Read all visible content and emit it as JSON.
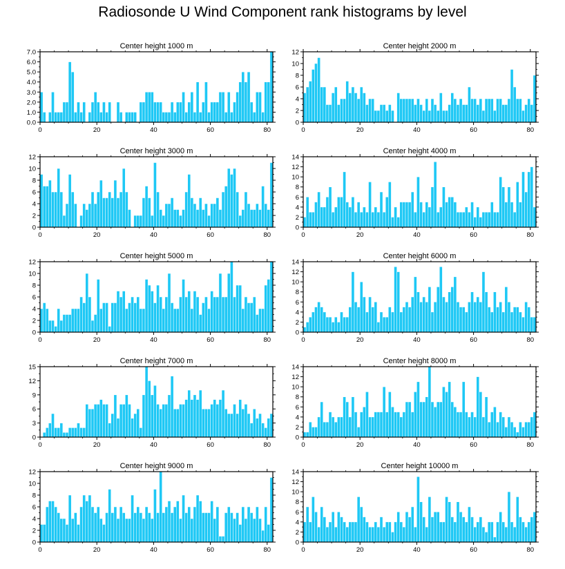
{
  "figure": {
    "title": "Radiosonde U Wind Component rank histograms by level"
  },
  "colors": {
    "bar_fill": "#1ec8f5",
    "bar_edge": "#ffffff",
    "axis": "#000000"
  },
  "chart_data": [
    {
      "type": "bar",
      "title": "Center height 1000 m",
      "xlabel": "",
      "ylabel": "",
      "xlim": [
        0,
        82
      ],
      "xticks": [
        0,
        20,
        40,
        60,
        80
      ],
      "ylim": [
        0,
        7
      ],
      "yticks": [
        0,
        1,
        2,
        3,
        4,
        5,
        6,
        7
      ],
      "ytick_labels": [
        "0.0",
        "1.0",
        "2.0",
        "3.0",
        "4.0",
        "5.0",
        "6.0",
        "7.0"
      ],
      "values": [
        3,
        1,
        0,
        1,
        3,
        1,
        1,
        1,
        2,
        2,
        6,
        5,
        1,
        2,
        1,
        2,
        0,
        1,
        2,
        3,
        2,
        1,
        2,
        1,
        2,
        0,
        0,
        2,
        1,
        0,
        1,
        1,
        1,
        1,
        0,
        2,
        2,
        3,
        3,
        3,
        2,
        2,
        2,
        1,
        1,
        1,
        2,
        1,
        2,
        2,
        3,
        1,
        2,
        3,
        1,
        4,
        1,
        2,
        4,
        1,
        2,
        2,
        2,
        3,
        3,
        1,
        3,
        1,
        2,
        3,
        4,
        5,
        4,
        5,
        2,
        1,
        3,
        3,
        1,
        4,
        4,
        7
      ]
    },
    {
      "type": "bar",
      "title": "Center height 2000 m",
      "xlabel": "",
      "ylabel": "",
      "xlim": [
        0,
        82
      ],
      "xticks": [
        0,
        20,
        40,
        60,
        80
      ],
      "ylim": [
        0,
        12
      ],
      "yticks": [
        0,
        2,
        4,
        6,
        8,
        10,
        12
      ],
      "ytick_labels": [
        "0",
        "2",
        "4",
        "6",
        "8",
        "10",
        "12"
      ],
      "values": [
        5,
        6,
        7,
        9,
        10,
        11,
        6,
        6,
        3,
        3,
        5,
        6,
        3,
        4,
        4,
        7,
        5,
        6,
        5,
        4,
        6,
        5,
        3,
        4,
        4,
        2,
        2,
        3,
        3,
        2,
        3,
        2,
        0,
        5,
        4,
        4,
        4,
        4,
        4,
        3,
        4,
        3,
        2,
        4,
        2,
        4,
        3,
        2,
        5,
        2,
        2,
        3,
        5,
        4,
        3,
        4,
        3,
        3,
        6,
        4,
        4,
        3,
        4,
        2,
        4,
        4,
        4,
        2,
        4,
        4,
        3,
        3,
        4,
        9,
        6,
        4,
        4,
        2,
        3,
        4,
        3,
        8
      ]
    },
    {
      "type": "bar",
      "title": "Center height 3000 m",
      "xlabel": "",
      "ylabel": "",
      "xlim": [
        0,
        82
      ],
      "xticks": [
        0,
        20,
        40,
        60,
        80
      ],
      "ylim": [
        0,
        12
      ],
      "yticks": [
        0,
        2,
        4,
        6,
        8,
        10,
        12
      ],
      "ytick_labels": [
        "0",
        "2",
        "4",
        "6",
        "8",
        "10",
        "12"
      ],
      "values": [
        9,
        7,
        7,
        8,
        6,
        6,
        10,
        6,
        2,
        4,
        9,
        6,
        4,
        0,
        2,
        4,
        3,
        4,
        6,
        4,
        6,
        8,
        5,
        5,
        6,
        5,
        8,
        5,
        6,
        10,
        6,
        3,
        0,
        2,
        2,
        2,
        5,
        7,
        5,
        2,
        11,
        6,
        3,
        2,
        4,
        4,
        5,
        3,
        3,
        2,
        3,
        6,
        9,
        5,
        4,
        3,
        5,
        3,
        4,
        2,
        4,
        4,
        5,
        3,
        6,
        7,
        10,
        9,
        10,
        6,
        2,
        3,
        6,
        4,
        3,
        3,
        4,
        3,
        7,
        4,
        3,
        11
      ]
    },
    {
      "type": "bar",
      "title": "Center height 4000 m",
      "xlabel": "",
      "ylabel": "",
      "xlim": [
        0,
        82
      ],
      "xticks": [
        0,
        20,
        40,
        60,
        80
      ],
      "ylim": [
        0,
        14
      ],
      "yticks": [
        0,
        2,
        4,
        6,
        8,
        10,
        12,
        14
      ],
      "ytick_labels": [
        "0",
        "2",
        "4",
        "6",
        "8",
        "10",
        "12",
        "14"
      ],
      "values": [
        2,
        6,
        3,
        3,
        5,
        7,
        4,
        4,
        6,
        8,
        3,
        4,
        6,
        6,
        11,
        5,
        4,
        6,
        3,
        5,
        3,
        4,
        3,
        9,
        3,
        4,
        3,
        7,
        3,
        6,
        9,
        2,
        4,
        2,
        5,
        5,
        5,
        5,
        7,
        3,
        10,
        5,
        3,
        5,
        4,
        8,
        13,
        3,
        4,
        8,
        5,
        6,
        6,
        5,
        3,
        3,
        3,
        4,
        3,
        5,
        2,
        4,
        2,
        3,
        3,
        3,
        5,
        3,
        3,
        10,
        8,
        5,
        8,
        5,
        3,
        9,
        5,
        11,
        7,
        11,
        12,
        4
      ]
    },
    {
      "type": "bar",
      "title": "Center height 5000 m",
      "xlabel": "",
      "ylabel": "",
      "xlim": [
        0,
        82
      ],
      "xticks": [
        0,
        20,
        40,
        60,
        80
      ],
      "ylim": [
        0,
        12
      ],
      "yticks": [
        0,
        2,
        4,
        6,
        8,
        10,
        12
      ],
      "ytick_labels": [
        "0",
        "2",
        "4",
        "6",
        "8",
        "10",
        "12"
      ],
      "values": [
        4,
        5,
        4,
        2,
        2,
        1,
        4,
        2,
        3,
        3,
        3,
        4,
        4,
        4,
        6,
        5,
        10,
        6,
        2,
        3,
        9,
        4,
        5,
        5,
        1,
        5,
        5,
        7,
        6,
        7,
        4,
        5,
        6,
        5,
        6,
        4,
        4,
        9,
        8,
        7,
        5,
        8,
        6,
        4,
        6,
        10,
        5,
        4,
        4,
        6,
        9,
        6,
        7,
        4,
        7,
        6,
        3,
        5,
        6,
        4,
        7,
        6,
        6,
        10,
        6,
        6,
        10,
        12,
        6,
        8,
        8,
        4,
        6,
        5,
        5,
        6,
        3,
        4,
        4,
        8,
        9,
        12
      ]
    },
    {
      "type": "bar",
      "title": "Center height 6000 m",
      "xlabel": "",
      "ylabel": "",
      "xlim": [
        0,
        82
      ],
      "xticks": [
        0,
        20,
        40,
        60,
        80
      ],
      "ylim": [
        0,
        14
      ],
      "yticks": [
        0,
        2,
        4,
        6,
        8,
        10,
        12,
        14
      ],
      "ytick_labels": [
        "0",
        "2",
        "4",
        "6",
        "8",
        "10",
        "12",
        "14"
      ],
      "values": [
        1,
        2,
        3,
        4,
        5,
        6,
        5,
        4,
        3,
        3,
        2,
        3,
        2,
        4,
        3,
        3,
        5,
        12,
        6,
        5,
        10,
        7,
        4,
        7,
        5,
        6,
        2,
        4,
        3,
        3,
        5,
        4,
        13,
        12,
        4,
        5,
        6,
        5,
        7,
        11,
        8,
        6,
        7,
        6,
        9,
        4,
        6,
        9,
        13,
        7,
        6,
        8,
        9,
        11,
        6,
        5,
        5,
        4,
        6,
        8,
        6,
        7,
        6,
        12,
        8,
        5,
        4,
        8,
        5,
        6,
        4,
        9,
        6,
        4,
        5,
        5,
        4,
        3,
        6,
        5,
        3,
        3
      ]
    },
    {
      "type": "bar",
      "title": "Center height 7000 m",
      "xlabel": "",
      "ylabel": "",
      "xlim": [
        0,
        82
      ],
      "xticks": [
        0,
        20,
        40,
        60,
        80
      ],
      "ylim": [
        0,
        15
      ],
      "yticks": [
        0,
        3,
        6,
        9,
        12,
        15
      ],
      "ytick_labels": [
        "0",
        "3",
        "6",
        "9",
        "12",
        "15"
      ],
      "values": [
        0,
        1,
        2,
        3,
        5,
        2,
        2,
        3,
        1,
        1,
        2,
        2,
        2,
        3,
        2,
        2,
        7,
        6,
        6,
        7,
        7,
        8,
        7,
        7,
        3,
        5,
        9,
        4,
        7,
        7,
        9,
        7,
        4,
        5,
        6,
        2,
        9,
        15,
        12,
        9,
        11,
        7,
        6,
        7,
        7,
        9,
        13,
        6,
        6,
        7,
        7,
        8,
        10,
        8,
        9,
        8,
        10,
        6,
        6,
        6,
        7,
        8,
        7,
        8,
        10,
        6,
        5,
        5,
        7,
        5,
        8,
        6,
        7,
        5,
        3,
        6,
        4,
        5,
        3,
        2,
        4,
        5
      ]
    },
    {
      "type": "bar",
      "title": "Center height 8000 m",
      "xlabel": "",
      "ylabel": "",
      "xlim": [
        0,
        82
      ],
      "xticks": [
        0,
        20,
        40,
        60,
        80
      ],
      "ylim": [
        0,
        14
      ],
      "yticks": [
        0,
        2,
        4,
        6,
        8,
        10,
        12,
        14
      ],
      "ytick_labels": [
        "0",
        "2",
        "4",
        "6",
        "8",
        "10",
        "12",
        "14"
      ],
      "values": [
        1,
        1,
        3,
        2,
        2,
        4,
        7,
        3,
        3,
        5,
        4,
        3,
        4,
        4,
        8,
        7,
        4,
        8,
        5,
        2,
        5,
        6,
        9,
        4,
        4,
        5,
        5,
        5,
        10,
        5,
        9,
        6,
        5,
        5,
        4,
        5,
        7,
        7,
        5,
        9,
        11,
        7,
        7,
        8,
        14,
        7,
        6,
        7,
        7,
        10,
        9,
        11,
        7,
        6,
        5,
        5,
        11,
        5,
        4,
        5,
        4,
        12,
        9,
        4,
        8,
        3,
        5,
        6,
        3,
        5,
        4,
        2,
        4,
        3,
        2,
        1,
        3,
        2,
        3,
        3,
        4,
        5
      ]
    },
    {
      "type": "bar",
      "title": "Center height 9000 m",
      "xlabel": "",
      "ylabel": "",
      "xlim": [
        0,
        82
      ],
      "xticks": [
        0,
        20,
        40,
        60,
        80
      ],
      "ylim": [
        0,
        12
      ],
      "yticks": [
        0,
        2,
        4,
        6,
        8,
        10,
        12
      ],
      "ytick_labels": [
        "0",
        "2",
        "4",
        "6",
        "8",
        "10",
        "12"
      ],
      "values": [
        3,
        3,
        6,
        7,
        7,
        6,
        5,
        4,
        4,
        3,
        8,
        4,
        5,
        3,
        6,
        8,
        7,
        8,
        6,
        5,
        6,
        4,
        3,
        5,
        9,
        5,
        6,
        4,
        6,
        5,
        4,
        4,
        8,
        5,
        6,
        5,
        4,
        6,
        5,
        4,
        9,
        5,
        12,
        5,
        6,
        7,
        5,
        6,
        7,
        4,
        8,
        5,
        6,
        4,
        6,
        8,
        7,
        5,
        5,
        5,
        7,
        4,
        6,
        1,
        1,
        5,
        6,
        5,
        4,
        5,
        3,
        6,
        4,
        6,
        5,
        4,
        6,
        4,
        2,
        6,
        3,
        11
      ]
    },
    {
      "type": "bar",
      "title": "Center height 10000 m",
      "xlabel": "",
      "ylabel": "",
      "xlim": [
        0,
        82
      ],
      "xticks": [
        0,
        20,
        40,
        60,
        80
      ],
      "ylim": [
        0,
        14
      ],
      "yticks": [
        0,
        2,
        4,
        6,
        8,
        10,
        12,
        14
      ],
      "ytick_labels": [
        "0",
        "2",
        "4",
        "6",
        "8",
        "10",
        "12",
        "14"
      ],
      "values": [
        4,
        7,
        4,
        9,
        6,
        3,
        7,
        5,
        3,
        4,
        6,
        3,
        6,
        5,
        4,
        3,
        4,
        4,
        4,
        9,
        7,
        5,
        4,
        3,
        3,
        4,
        3,
        5,
        3,
        4,
        4,
        2,
        4,
        6,
        4,
        3,
        6,
        5,
        7,
        3,
        13,
        8,
        5,
        3,
        9,
        5,
        6,
        6,
        4,
        4,
        9,
        8,
        5,
        4,
        8,
        6,
        5,
        4,
        7,
        5,
        3,
        4,
        5,
        3,
        2,
        4,
        4,
        1,
        4,
        6,
        4,
        3,
        10,
        4,
        3,
        9,
        5,
        4,
        3,
        4,
        5,
        6
      ]
    }
  ]
}
